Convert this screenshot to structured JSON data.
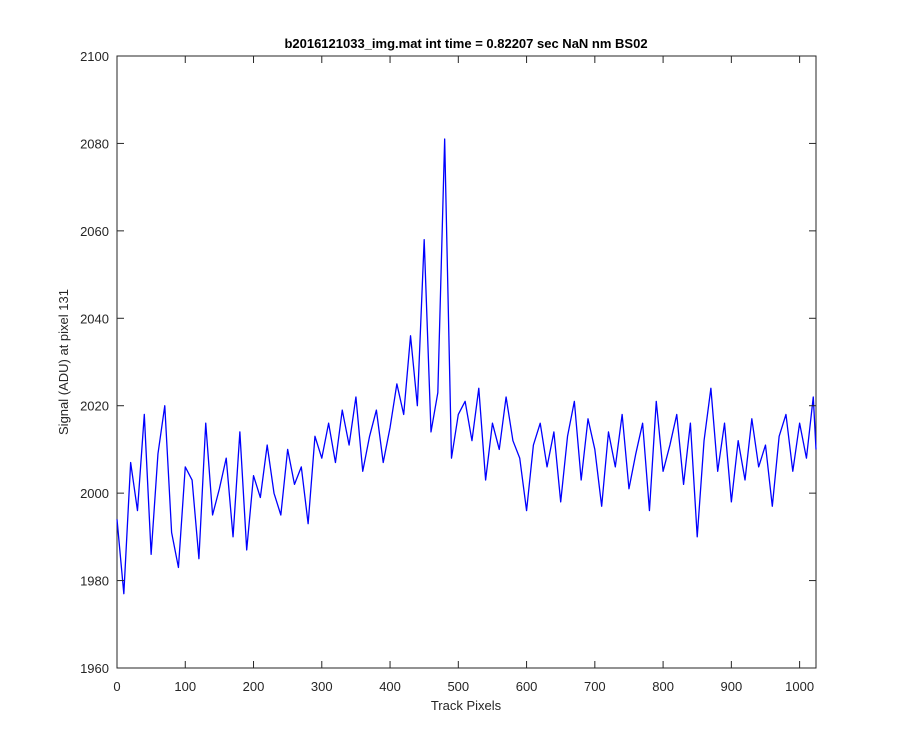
{
  "chart_data": {
    "type": "line",
    "title": "b2016121033_img.mat int time = 0.82207 sec  NaN nm BS02",
    "xlabel": "Track Pixels",
    "ylabel": "Signal (ADU) at pixel 131",
    "xlim": [
      0,
      1024
    ],
    "ylim": [
      1960,
      2100
    ],
    "xticks": [
      "0",
      "100",
      "200",
      "300",
      "400",
      "500",
      "600",
      "700",
      "800",
      "900",
      "1000"
    ],
    "yticks": [
      "1960",
      "1980",
      "2000",
      "2020",
      "2040",
      "2060",
      "2080",
      "2100"
    ],
    "grid": false,
    "series": [
      {
        "color": "#0000ff",
        "x": [
          0,
          10,
          20,
          30,
          40,
          50,
          60,
          70,
          80,
          90,
          100,
          110,
          120,
          130,
          140,
          150,
          160,
          170,
          180,
          190,
          200,
          210,
          220,
          230,
          240,
          250,
          260,
          270,
          280,
          290,
          300,
          310,
          320,
          330,
          340,
          350,
          360,
          370,
          380,
          390,
          400,
          410,
          420,
          430,
          440,
          450,
          460,
          470,
          480,
          490,
          500,
          510,
          520,
          530,
          540,
          550,
          560,
          570,
          580,
          590,
          600,
          610,
          620,
          630,
          640,
          650,
          660,
          670,
          680,
          690,
          700,
          710,
          720,
          730,
          740,
          750,
          760,
          770,
          780,
          790,
          800,
          810,
          820,
          830,
          840,
          850,
          860,
          870,
          880,
          890,
          900,
          910,
          920,
          930,
          940,
          950,
          960,
          970,
          980,
          990,
          1000,
          1010,
          1020,
          1024
        ],
        "y": [
          1994,
          1977,
          2007,
          1996,
          2018,
          1986,
          2009,
          2020,
          1991,
          1983,
          2006,
          2003,
          1985,
          2016,
          1995,
          2001,
          2008,
          1990,
          2014,
          1987,
          2004,
          1999,
          2011,
          2000,
          1995,
          2010,
          2002,
          2006,
          1993,
          2013,
          2008,
          2016,
          2007,
          2019,
          2011,
          2022,
          2005,
          2013,
          2019,
          2007,
          2015,
          2025,
          2018,
          2036,
          2020,
          2058,
          2014,
          2023,
          2081,
          2008,
          2018,
          2021,
          2012,
          2024,
          2003,
          2016,
          2010,
          2022,
          2012,
          2008,
          1996,
          2011,
          2016,
          2006,
          2014,
          1998,
          2013,
          2021,
          2003,
          2017,
          2010,
          1997,
          2014,
          2006,
          2018,
          2001,
          2009,
          2016,
          1996,
          2021,
          2005,
          2011,
          2018,
          2002,
          2016,
          1990,
          2012,
          2024,
          2005,
          2016,
          1998,
          2012,
          2003,
          2017,
          2006,
          2011,
          1997,
          2013,
          2018,
          2005,
          2016,
          2008,
          2022,
          2010
        ]
      }
    ]
  }
}
